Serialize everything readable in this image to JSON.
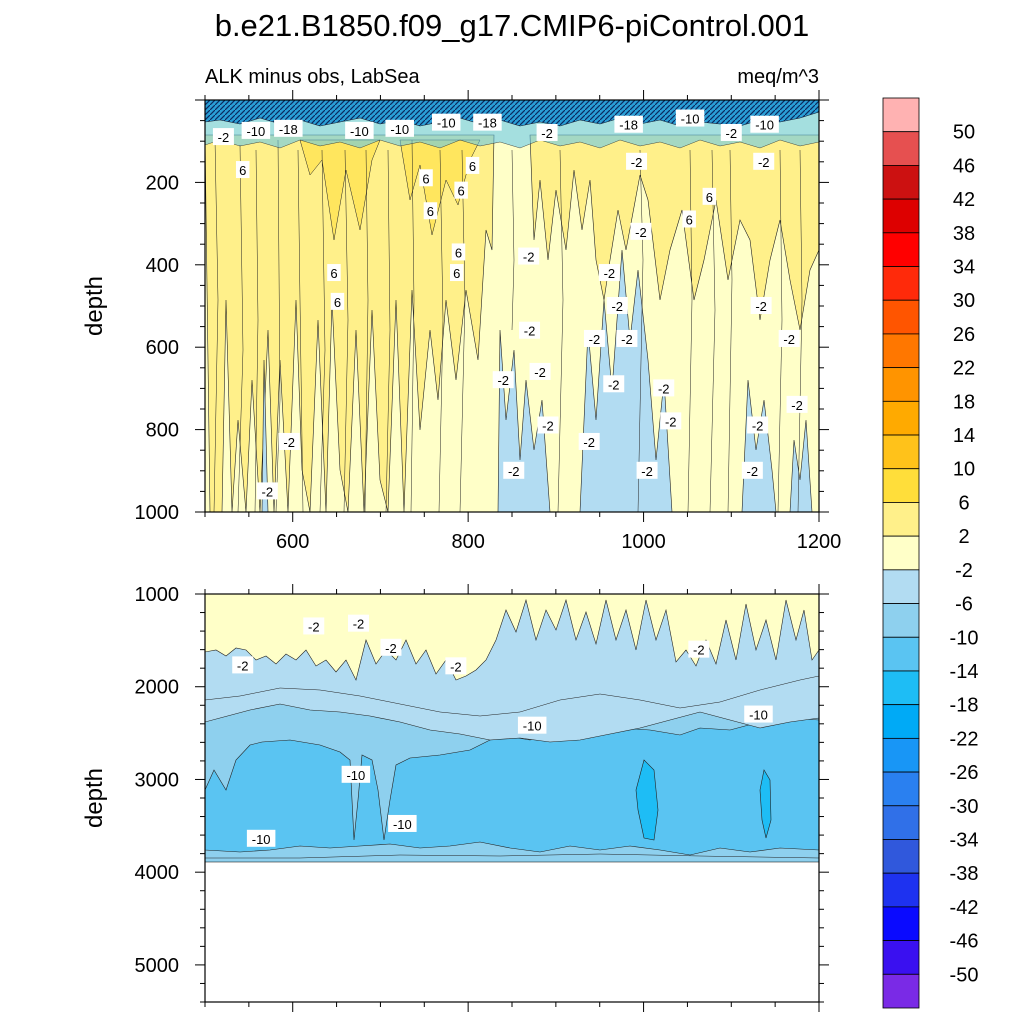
{
  "title": "b.e21.B1850.f09_g17.CMIP6-piControl.001",
  "chart_data": {
    "type": "heatmap",
    "subtitle_left": "ALK minus obs, LabSea",
    "subtitle_right": "meq/m^3",
    "colorbar": {
      "labels": [
        "50",
        "46",
        "42",
        "38",
        "34",
        "30",
        "26",
        "22",
        "18",
        "14",
        "10",
        "6",
        "2",
        "-2",
        "-6",
        "-10",
        "-14",
        "-18",
        "-22",
        "-26",
        "-30",
        "-34",
        "-38",
        "-42",
        "-46",
        "-50"
      ],
      "colors": [
        "#ffb2b2",
        "#e65050",
        "#cc1111",
        "#dd0000",
        "#ff0000",
        "#ff2a0a",
        "#ff5500",
        "#ff7700",
        "#ff9400",
        "#ffaa00",
        "#ffc21a",
        "#ffde3a",
        "#fff08a",
        "#ffffc8",
        "#b2dcf2",
        "#8ed0ee",
        "#5ac4f2",
        "#1ebdf5",
        "#00aaf6",
        "#1896f6",
        "#2a80f0",
        "#3070e8",
        "#3058dc",
        "#1e32f0",
        "#0a0aff",
        "#3a10f0",
        "#7a2ae6"
      ]
    },
    "panels": [
      {
        "name": "upper",
        "ylabel": "depth",
        "xlim": [
          500,
          1200
        ],
        "ylim": [
          0,
          1000
        ],
        "x_ticks": [
          "600",
          "800",
          "1000",
          "1200"
        ],
        "y_ticks": [
          "200",
          "400",
          "600",
          "800",
          "1000"
        ],
        "contour_labels": [
          {
            "text": "-2",
            "x": 521,
            "y": 90
          },
          {
            "text": "-10",
            "x": 558,
            "y": 75
          },
          {
            "text": "-18",
            "x": 595,
            "y": 70
          },
          {
            "text": "-10",
            "x": 676,
            "y": 75
          },
          {
            "text": "-10",
            "x": 722,
            "y": 70
          },
          {
            "text": "-10",
            "x": 775,
            "y": 55
          },
          {
            "text": "-18",
            "x": 822,
            "y": 55
          },
          {
            "text": "-2",
            "x": 890,
            "y": 80
          },
          {
            "text": "-18",
            "x": 983,
            "y": 60
          },
          {
            "text": "-10",
            "x": 1053,
            "y": 45
          },
          {
            "text": "-2",
            "x": 1100,
            "y": 80
          },
          {
            "text": "-10",
            "x": 1138,
            "y": 60
          },
          {
            "text": "6",
            "x": 543,
            "y": 170
          },
          {
            "text": "6",
            "x": 752,
            "y": 190
          },
          {
            "text": "6",
            "x": 805,
            "y": 160
          },
          {
            "text": "6",
            "x": 792,
            "y": 220
          },
          {
            "text": "6",
            "x": 757,
            "y": 270
          },
          {
            "text": "6",
            "x": 1075,
            "y": 235
          },
          {
            "text": "6",
            "x": 1052,
            "y": 290
          },
          {
            "text": "6",
            "x": 789,
            "y": 370
          },
          {
            "text": "6",
            "x": 787,
            "y": 420
          },
          {
            "text": "6",
            "x": 647,
            "y": 420
          },
          {
            "text": "6",
            "x": 651,
            "y": 490
          },
          {
            "text": "-2",
            "x": 992,
            "y": 150
          },
          {
            "text": "-2",
            "x": 1137,
            "y": 150
          },
          {
            "text": "-2",
            "x": 997,
            "y": 320
          },
          {
            "text": "-2",
            "x": 869,
            "y": 380
          },
          {
            "text": "-2",
            "x": 961,
            "y": 420
          },
          {
            "text": "-2",
            "x": 970,
            "y": 500
          },
          {
            "text": "-2",
            "x": 1134,
            "y": 500
          },
          {
            "text": "-2",
            "x": 870,
            "y": 560
          },
          {
            "text": "-2",
            "x": 944,
            "y": 580
          },
          {
            "text": "-2",
            "x": 981,
            "y": 580
          },
          {
            "text": "-2",
            "x": 1166,
            "y": 580
          },
          {
            "text": "-2",
            "x": 840,
            "y": 680
          },
          {
            "text": "-2",
            "x": 882,
            "y": 660
          },
          {
            "text": "-2",
            "x": 966,
            "y": 690
          },
          {
            "text": "-2",
            "x": 1023,
            "y": 700
          },
          {
            "text": "-2",
            "x": 1175,
            "y": 740
          },
          {
            "text": "-2",
            "x": 891,
            "y": 790
          },
          {
            "text": "-2",
            "x": 938,
            "y": 830
          },
          {
            "text": "-2",
            "x": 1031,
            "y": 780
          },
          {
            "text": "-2",
            "x": 1130,
            "y": 790
          },
          {
            "text": "-2",
            "x": 596,
            "y": 830
          },
          {
            "text": "-2",
            "x": 852,
            "y": 900
          },
          {
            "text": "-2",
            "x": 1004,
            "y": 900
          },
          {
            "text": "-2",
            "x": 1124,
            "y": 900
          },
          {
            "text": "-2",
            "x": 571,
            "y": 950
          }
        ]
      },
      {
        "name": "lower",
        "ylabel": "depth",
        "xlim": [
          500,
          1200
        ],
        "ylim": [
          1000,
          5400
        ],
        "x_ticks": [],
        "y_ticks": [
          "1000",
          "2000",
          "3000",
          "4000",
          "5000"
        ],
        "contour_labels": [
          {
            "text": "-2",
            "x": 624,
            "y": 1350
          },
          {
            "text": "-2",
            "x": 675,
            "y": 1320
          },
          {
            "text": "-2",
            "x": 712,
            "y": 1580
          },
          {
            "text": "-2",
            "x": 543,
            "y": 1770
          },
          {
            "text": "-2",
            "x": 786,
            "y": 1780
          },
          {
            "text": "-2",
            "x": 1063,
            "y": 1600
          },
          {
            "text": "-10",
            "x": 873,
            "y": 2420
          },
          {
            "text": "-10",
            "x": 1131,
            "y": 2300
          },
          {
            "text": "-10",
            "x": 672,
            "y": 2950
          },
          {
            "text": "-10",
            "x": 725,
            "y": 3480
          },
          {
            "text": "-10",
            "x": 564,
            "y": 3640
          }
        ]
      }
    ]
  }
}
